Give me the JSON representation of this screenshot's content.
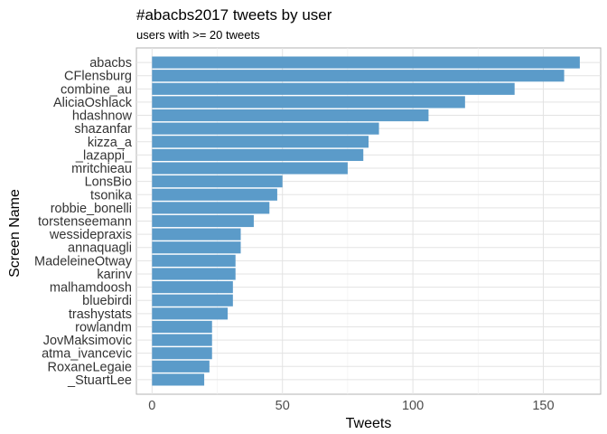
{
  "chart_data": {
    "type": "bar",
    "orientation": "horizontal",
    "title": "#abacbs2017 tweets by user",
    "subtitle": "users with >= 20 tweets",
    "xlabel": "Tweets",
    "ylabel": "Screen Name",
    "xlim": [
      -6,
      172
    ],
    "x_ticks": [
      0,
      50,
      100,
      150
    ],
    "grid": true,
    "legend": "none",
    "bar_color": "#5b9bc9",
    "categories": [
      "abacbs",
      "CFlensburg",
      "combine_au",
      "AliciaOshlack",
      "hdashnow",
      "shazanfar",
      "kizza_a",
      "_lazappi_",
      "mritchieau",
      "LonsBio",
      "tsonika",
      "robbie_bonelli",
      "torstenseemann",
      "wessidepraxis",
      "annaquagli",
      "MadeleineOtway",
      "karinv",
      "malhamdoosh",
      "bluebirdi",
      "trashystats",
      "rowlandm",
      "JovMaksimovic",
      "atma_ivancevic",
      "RoxaneLegaie",
      "_StuartLee"
    ],
    "values": [
      164,
      158,
      139,
      120,
      106,
      87,
      83,
      81,
      75,
      50,
      48,
      45,
      39,
      34,
      34,
      32,
      32,
      31,
      31,
      29,
      23,
      23,
      23,
      22,
      20
    ]
  }
}
